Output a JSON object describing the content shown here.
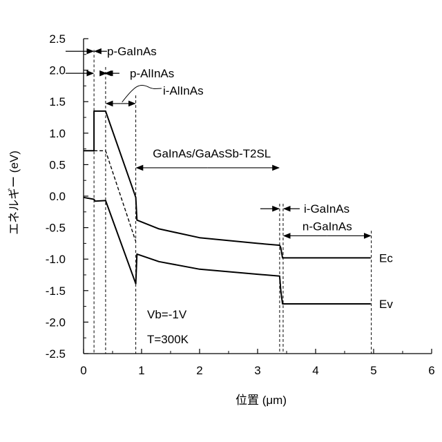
{
  "chart_data": {
    "type": "line",
    "xlabel": "位置 (μm)",
    "ylabel": "エネルギー (eV)",
    "xlim": [
      0,
      6
    ],
    "ylim": [
      -2.5,
      2.5
    ],
    "xticks": [
      "0",
      "1",
      "2",
      "3",
      "4",
      "5",
      "6"
    ],
    "yticks": [
      "2.5",
      "2.0",
      "1.5",
      "1.0",
      "0.5",
      "0.0",
      "-0.5",
      "-1.0",
      "-1.5",
      "-2.0",
      "-2.5"
    ],
    "grid": false,
    "series": [
      {
        "name": "Ec",
        "points": [
          [
            0,
            0.72
          ],
          [
            0.18,
            0.72
          ],
          [
            0.18,
            1.35
          ],
          [
            0.38,
            1.35
          ],
          [
            0.9,
            -0.02
          ],
          [
            0.92,
            -0.38
          ],
          [
            1.3,
            -0.52
          ],
          [
            2.0,
            -0.66
          ],
          [
            3.0,
            -0.75
          ],
          [
            3.38,
            -0.78
          ],
          [
            3.4,
            -0.82
          ],
          [
            3.43,
            -0.98
          ],
          [
            4.95,
            -0.98
          ]
        ]
      },
      {
        "name": "Ev",
        "points": [
          [
            0,
            -0.02
          ],
          [
            0.18,
            -0.05
          ],
          [
            0.2,
            -0.08
          ],
          [
            0.38,
            -0.07
          ],
          [
            0.9,
            -1.39
          ],
          [
            0.92,
            -0.92
          ],
          [
            1.3,
            -1.04
          ],
          [
            2.0,
            -1.16
          ],
          [
            3.0,
            -1.24
          ],
          [
            3.38,
            -1.27
          ],
          [
            3.4,
            -1.5
          ],
          [
            3.43,
            -1.71
          ],
          [
            4.95,
            -1.71
          ]
        ]
      },
      {
        "name": "",
        "dashed": true,
        "points": [
          [
            0.18,
            0.72
          ],
          [
            0.38,
            0.72
          ],
          [
            0.9,
            -0.72
          ]
        ]
      }
    ],
    "boundaries": [
      0.18,
      0.38,
      0.9,
      3.38,
      3.44,
      4.96
    ],
    "layer_labels": [
      {
        "text": "p-GaInAs",
        "from": 0.18,
        "y": 2.3
      },
      {
        "text": "p-AlInAs",
        "from": 0.18,
        "to": 0.38,
        "y": 1.95
      },
      {
        "text": "i-AlInAs",
        "from": 0.38,
        "to": 0.9,
        "y": 1.47
      },
      {
        "text": "GaInAs/GaAsSb-T2SL",
        "from": 0.9,
        "to": 3.38,
        "y": 0.45
      },
      {
        "text": "i-GaInAs",
        "from": 3.38,
        "to": 3.44,
        "y": -0.2
      },
      {
        "text": "n-GaInAs",
        "from": 3.44,
        "to": 4.96,
        "y": -0.63
      }
    ],
    "band_labels": [
      "Ec",
      "Ev"
    ],
    "conditions": [
      "Vb=-1V",
      "T=300K"
    ]
  }
}
